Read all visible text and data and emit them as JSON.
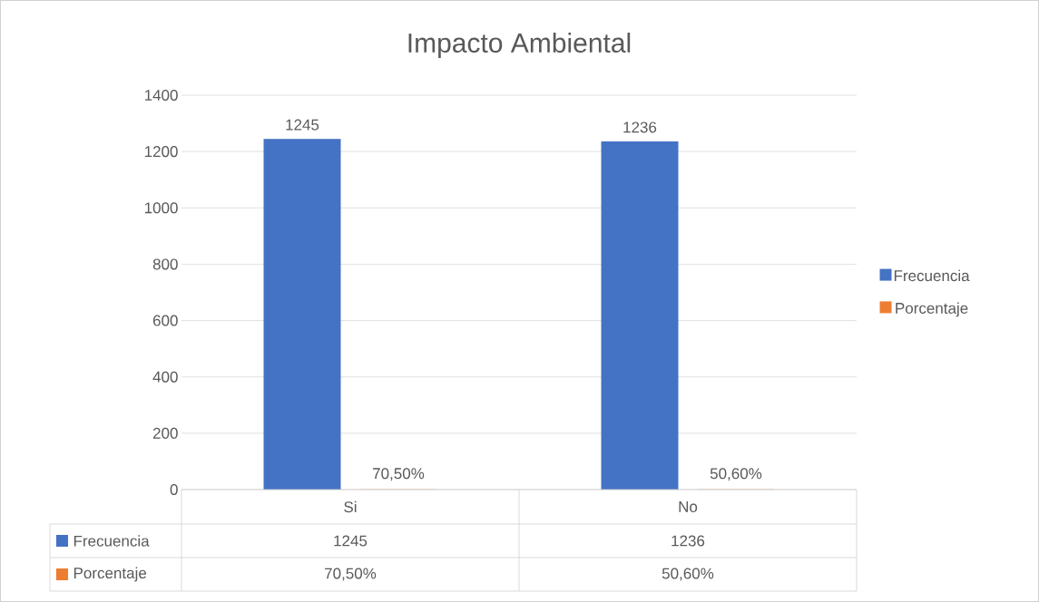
{
  "chart_data": {
    "type": "bar",
    "title": "Impacto Ambiental",
    "categories": [
      "Si",
      "No"
    ],
    "series": [
      {
        "name": "Frecuencia",
        "color": "#4472c4",
        "values": [
          1245,
          1236
        ],
        "value_labels": [
          "1245",
          "1236"
        ]
      },
      {
        "name": "Porcentaje",
        "color": "#ed7d31",
        "values": [
          0.705,
          0.506
        ],
        "value_labels": [
          "70,50%",
          "50,60%"
        ]
      }
    ],
    "ylim": [
      0,
      1400
    ],
    "yticks": [
      0,
      200,
      400,
      600,
      800,
      1000,
      1200,
      1400
    ],
    "grid": "y",
    "legend": "right"
  }
}
